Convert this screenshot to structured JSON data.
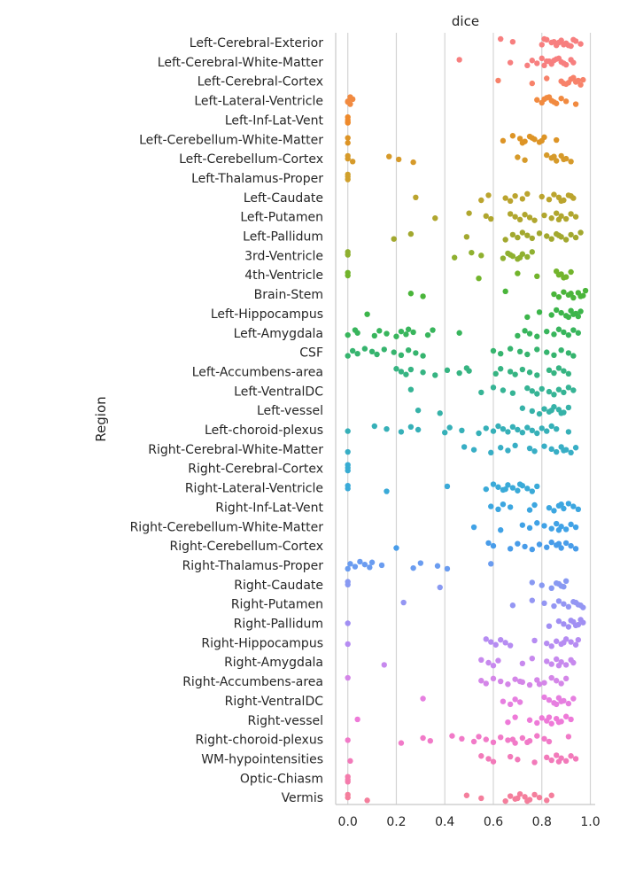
{
  "chart_data": {
    "type": "scatter",
    "title": "dice",
    "xlabel": "",
    "ylabel": "Region",
    "xlim": [
      -0.05,
      1.02
    ],
    "xticks": [
      0.0,
      0.2,
      0.4,
      0.6,
      0.8,
      1.0
    ],
    "xtick_labels": [
      "0.0",
      "0.2",
      "0.4",
      "0.6",
      "0.8",
      "1.0"
    ],
    "grid": "vertical",
    "categories": [
      {
        "label": "Left-Cerebral-Exterior",
        "color": "#f77f7f",
        "values": [
          0.63,
          0.68,
          0.8,
          0.82,
          0.84,
          0.86,
          0.88,
          0.9,
          0.92,
          0.94,
          0.96,
          0.81,
          0.85,
          0.89,
          0.93,
          0.87,
          0.91
        ]
      },
      {
        "label": "Left-Cerebral-White-Matter",
        "color": "#f77f7f",
        "values": [
          0.46,
          0.67,
          0.74,
          0.76,
          0.78,
          0.8,
          0.82,
          0.84,
          0.86,
          0.88,
          0.9,
          0.92,
          0.93,
          0.81,
          0.85,
          0.89,
          0.87,
          0.83
        ]
      },
      {
        "label": "Left-Cerebral-Cortex",
        "color": "#f7826a",
        "values": [
          0.62,
          0.76,
          0.82,
          0.88,
          0.9,
          0.92,
          0.94,
          0.96,
          0.97,
          0.91,
          0.93,
          0.95,
          0.89
        ]
      },
      {
        "label": "Left-Lateral-Ventricle",
        "color": "#f18a40",
        "values": [
          0.0,
          0.01,
          0.02,
          0.0,
          0.01,
          0.78,
          0.8,
          0.82,
          0.84,
          0.86,
          0.88,
          0.9,
          0.94,
          0.81,
          0.85,
          0.83
        ]
      },
      {
        "label": "Left-Inf-Lat-Vent",
        "color": "#ee8a2c",
        "values": [
          0.0,
          0.0,
          0.0,
          0.0
        ]
      },
      {
        "label": "Left-Cerebellum-White-Matter",
        "color": "#dd9426",
        "values": [
          0.0,
          0.0,
          0.64,
          0.68,
          0.71,
          0.73,
          0.75,
          0.77,
          0.79,
          0.81,
          0.86,
          0.72,
          0.76,
          0.8
        ]
      },
      {
        "label": "Left-Cerebellum-Cortex",
        "color": "#d69a2a",
        "values": [
          0.0,
          0.0,
          0.02,
          0.17,
          0.21,
          0.27,
          0.7,
          0.73,
          0.82,
          0.84,
          0.86,
          0.88,
          0.9,
          0.92,
          0.85,
          0.89
        ]
      },
      {
        "label": "Left-Thalamus-Proper",
        "color": "#d0a02c",
        "values": [
          0.0,
          0.0,
          0.0
        ]
      },
      {
        "label": "Left-Caudate",
        "color": "#bba42e",
        "values": [
          0.28,
          0.55,
          0.58,
          0.65,
          0.67,
          0.69,
          0.72,
          0.74,
          0.8,
          0.83,
          0.85,
          0.87,
          0.89,
          0.91,
          0.93,
          0.88,
          0.92
        ]
      },
      {
        "label": "Left-Putamen",
        "color": "#b0a62e",
        "values": [
          0.36,
          0.5,
          0.57,
          0.59,
          0.67,
          0.69,
          0.71,
          0.73,
          0.75,
          0.77,
          0.81,
          0.84,
          0.86,
          0.88,
          0.9,
          0.92,
          0.94,
          0.87
        ]
      },
      {
        "label": "Left-Pallidum",
        "color": "#a2a82e",
        "values": [
          0.19,
          0.26,
          0.49,
          0.65,
          0.68,
          0.7,
          0.72,
          0.74,
          0.76,
          0.79,
          0.82,
          0.84,
          0.86,
          0.88,
          0.9,
          0.92,
          0.94,
          0.96,
          0.87
        ]
      },
      {
        "label": "3rd-Ventricle",
        "color": "#8fb030",
        "values": [
          0.0,
          0.0,
          0.44,
          0.51,
          0.55,
          0.64,
          0.66,
          0.68,
          0.7,
          0.72,
          0.74,
          0.76,
          0.67,
          0.71
        ]
      },
      {
        "label": "4th-Ventricle",
        "color": "#72b42c",
        "values": [
          0.0,
          0.0,
          0.54,
          0.7,
          0.78,
          0.86,
          0.88,
          0.9,
          0.92,
          0.87,
          0.89
        ]
      },
      {
        "label": "Brain-Stem",
        "color": "#4ab53a",
        "values": [
          0.26,
          0.31,
          0.65,
          0.85,
          0.87,
          0.89,
          0.91,
          0.93,
          0.95,
          0.97,
          0.98,
          0.92,
          0.96
        ]
      },
      {
        "label": "Left-Hippocampus",
        "color": "#3cb54a",
        "values": [
          0.08,
          0.74,
          0.79,
          0.84,
          0.86,
          0.88,
          0.9,
          0.92,
          0.94,
          0.95,
          0.96,
          0.93,
          0.91
        ]
      },
      {
        "label": "Left-Amygdala",
        "color": "#38b55c",
        "values": [
          0.0,
          0.03,
          0.04,
          0.11,
          0.13,
          0.16,
          0.2,
          0.22,
          0.24,
          0.25,
          0.27,
          0.33,
          0.35,
          0.46,
          0.7,
          0.73,
          0.75,
          0.78,
          0.82,
          0.85,
          0.87,
          0.89,
          0.91,
          0.93,
          0.95
        ]
      },
      {
        "label": "CSF",
        "color": "#36b46e",
        "values": [
          0.0,
          0.02,
          0.04,
          0.07,
          0.1,
          0.12,
          0.15,
          0.19,
          0.22,
          0.25,
          0.28,
          0.31,
          0.6,
          0.63,
          0.67,
          0.71,
          0.74,
          0.78,
          0.82,
          0.85,
          0.88,
          0.91,
          0.93
        ]
      },
      {
        "label": "Left-Accumbens-area",
        "color": "#36b482",
        "values": [
          0.2,
          0.22,
          0.24,
          0.26,
          0.31,
          0.36,
          0.41,
          0.46,
          0.49,
          0.5,
          0.61,
          0.63,
          0.67,
          0.69,
          0.72,
          0.75,
          0.78,
          0.83,
          0.85,
          0.87,
          0.89,
          0.91
        ]
      },
      {
        "label": "Left-VentralDC",
        "color": "#36b495",
        "values": [
          0.26,
          0.55,
          0.6,
          0.64,
          0.68,
          0.74,
          0.76,
          0.78,
          0.8,
          0.83,
          0.85,
          0.87,
          0.89,
          0.91,
          0.93
        ]
      },
      {
        "label": "Left-vessel",
        "color": "#36b2a8",
        "values": [
          0.29,
          0.38,
          0.72,
          0.76,
          0.79,
          0.81,
          0.83,
          0.85,
          0.87,
          0.89,
          0.91,
          0.84,
          0.88
        ]
      },
      {
        "label": "Left-choroid-plexus",
        "color": "#36b0b8",
        "values": [
          0.0,
          0.11,
          0.16,
          0.22,
          0.26,
          0.29,
          0.4,
          0.42,
          0.47,
          0.54,
          0.57,
          0.6,
          0.62,
          0.64,
          0.66,
          0.68,
          0.7,
          0.72,
          0.74,
          0.76,
          0.78,
          0.8,
          0.82,
          0.84,
          0.86,
          0.91
        ]
      },
      {
        "label": "Right-Cerebral-White-Matter",
        "color": "#38aec5",
        "values": [
          0.0,
          0.48,
          0.52,
          0.59,
          0.63,
          0.66,
          0.69,
          0.75,
          0.77,
          0.81,
          0.84,
          0.86,
          0.88,
          0.9,
          0.92,
          0.94,
          0.89
        ]
      },
      {
        "label": "Right-Cerebral-Cortex",
        "color": "#38acd2",
        "values": [
          0.0,
          0.0,
          0.0
        ]
      },
      {
        "label": "Right-Lateral-Ventricle",
        "color": "#3aaad8",
        "values": [
          0.0,
          0.0,
          0.16,
          0.41,
          0.57,
          0.6,
          0.62,
          0.64,
          0.66,
          0.68,
          0.7,
          0.72,
          0.74,
          0.76,
          0.78,
          0.65,
          0.71
        ]
      },
      {
        "label": "Right-Inf-Lat-Vent",
        "color": "#3ca6e0",
        "values": [
          0.59,
          0.62,
          0.64,
          0.67,
          0.75,
          0.77,
          0.83,
          0.85,
          0.87,
          0.89,
          0.91,
          0.93,
          0.95,
          0.88
        ]
      },
      {
        "label": "Right-Cerebellum-White-Matter",
        "color": "#40a2e6",
        "values": [
          0.52,
          0.63,
          0.72,
          0.75,
          0.78,
          0.81,
          0.84,
          0.86,
          0.88,
          0.9,
          0.92,
          0.94,
          0.87
        ]
      },
      {
        "label": "Right-Cerebellum-Cortex",
        "color": "#489ce9",
        "values": [
          0.2,
          0.58,
          0.6,
          0.67,
          0.7,
          0.73,
          0.76,
          0.79,
          0.82,
          0.84,
          0.86,
          0.88,
          0.9,
          0.92,
          0.94,
          0.87
        ]
      },
      {
        "label": "Right-Thalamus-Proper",
        "color": "#6a9cf0",
        "values": [
          0.0,
          0.01,
          0.03,
          0.05,
          0.07,
          0.09,
          0.1,
          0.14,
          0.27,
          0.3,
          0.37,
          0.41,
          0.59
        ]
      },
      {
        "label": "Right-Caudate",
        "color": "#8899f2",
        "values": [
          0.0,
          0.0,
          0.38,
          0.76,
          0.8,
          0.84,
          0.86,
          0.88,
          0.9,
          0.87,
          0.89
        ]
      },
      {
        "label": "Right-Putamen",
        "color": "#9496f3",
        "values": [
          0.23,
          0.68,
          0.76,
          0.81,
          0.85,
          0.87,
          0.89,
          0.91,
          0.93,
          0.95,
          0.97,
          0.94,
          0.96
        ]
      },
      {
        "label": "Right-Pallidum",
        "color": "#a18ff3",
        "values": [
          0.0,
          0.83,
          0.87,
          0.89,
          0.91,
          0.93,
          0.95,
          0.96,
          0.97,
          0.94,
          0.92
        ]
      },
      {
        "label": "Right-Hippocampus",
        "color": "#b68cf2",
        "values": [
          0.0,
          0.57,
          0.59,
          0.61,
          0.63,
          0.65,
          0.67,
          0.77,
          0.82,
          0.84,
          0.86,
          0.88,
          0.9,
          0.92,
          0.94,
          0.95,
          0.89
        ]
      },
      {
        "label": "Right-Amygdala",
        "color": "#c789ee",
        "values": [
          0.15,
          0.55,
          0.58,
          0.6,
          0.62,
          0.72,
          0.76,
          0.82,
          0.84,
          0.86,
          0.88,
          0.9,
          0.92,
          0.93,
          0.87
        ]
      },
      {
        "label": "Right-Accumbens-area",
        "color": "#d486e8",
        "values": [
          0.0,
          0.55,
          0.57,
          0.6,
          0.63,
          0.66,
          0.69,
          0.72,
          0.75,
          0.78,
          0.81,
          0.84,
          0.86,
          0.88,
          0.9,
          0.71,
          0.79
        ]
      },
      {
        "label": "Right-VentralDC",
        "color": "#e67fe0",
        "values": [
          0.31,
          0.64,
          0.67,
          0.69,
          0.71,
          0.81,
          0.83,
          0.85,
          0.87,
          0.89,
          0.91,
          0.93,
          0.88,
          0.86
        ]
      },
      {
        "label": "Right-vessel",
        "color": "#ee7ad8",
        "values": [
          0.04,
          0.66,
          0.69,
          0.75,
          0.78,
          0.8,
          0.82,
          0.84,
          0.86,
          0.88,
          0.9,
          0.92,
          0.87,
          0.83
        ]
      },
      {
        "label": "Right-choroid-plexus",
        "color": "#f17ac8",
        "values": [
          0.0,
          0.22,
          0.31,
          0.34,
          0.43,
          0.47,
          0.52,
          0.54,
          0.57,
          0.6,
          0.63,
          0.66,
          0.69,
          0.72,
          0.75,
          0.78,
          0.81,
          0.83,
          0.91,
          0.68,
          0.74
        ]
      },
      {
        "label": "WM-hypointensities",
        "color": "#f27aba",
        "values": [
          0.01,
          0.55,
          0.58,
          0.6,
          0.67,
          0.7,
          0.77,
          0.82,
          0.84,
          0.86,
          0.88,
          0.9,
          0.92,
          0.94,
          0.87
        ]
      },
      {
        "label": "Optic-Chiasm",
        "color": "#f47cac",
        "values": [
          0.0,
          0.0,
          0.0
        ]
      },
      {
        "label": "Vermis",
        "color": "#f47e9c",
        "values": [
          0.0,
          0.0,
          0.08,
          0.49,
          0.55,
          0.65,
          0.67,
          0.69,
          0.71,
          0.73,
          0.75,
          0.77,
          0.79,
          0.82,
          0.84,
          0.7,
          0.74
        ]
      }
    ]
  }
}
